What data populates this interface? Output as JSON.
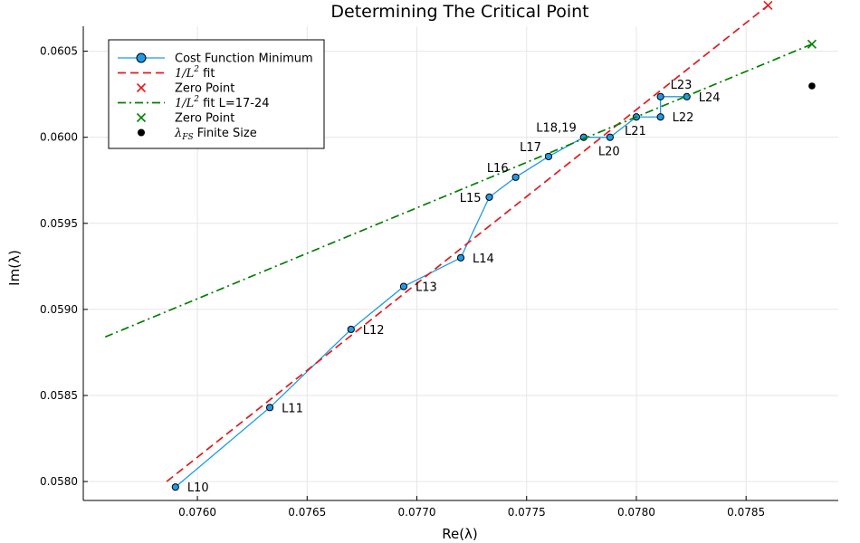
{
  "chart_data": {
    "type": "scatter",
    "title": "Determining The Critical Point",
    "xlabel": "Re(λ)",
    "ylabel": "Im(λ)",
    "xlim": [
      0.07548,
      0.07892
    ],
    "ylim": [
      0.05789,
      0.060645
    ],
    "x_ticks": [
      0.076,
      0.0765,
      0.077,
      0.0775,
      0.078,
      0.0785
    ],
    "x_tick_labels": [
      "0.0760",
      "0.0765",
      "0.0770",
      "0.0775",
      "0.0780",
      "0.0785"
    ],
    "y_ticks": [
      0.058,
      0.0585,
      0.059,
      0.0595,
      0.06,
      0.0605
    ],
    "y_tick_labels": [
      "0.0580",
      "0.0585",
      "0.0590",
      "0.0595",
      "0.0600",
      "0.0605"
    ],
    "grid": true,
    "legend_position": "top-left",
    "colors": {
      "cost_series": "#1f9be6",
      "fit_all": "#e41a1c",
      "fit_sub": "#008000",
      "finite_size": "#000000"
    },
    "series": [
      {
        "name": "Cost Function Minimum",
        "kind": "line-markers",
        "points": [
          {
            "x": 0.0759,
            "y": 0.057968,
            "label": "L10",
            "anchor": "right"
          },
          {
            "x": 0.07633,
            "y": 0.05843,
            "label": "L11",
            "anchor": "right"
          },
          {
            "x": 0.0767,
            "y": 0.058884,
            "label": "L12",
            "anchor": "right"
          },
          {
            "x": 0.07694,
            "y": 0.059133,
            "label": "L13",
            "anchor": "right"
          },
          {
            "x": 0.0772,
            "y": 0.0593,
            "label": "L14",
            "anchor": "right"
          },
          {
            "x": 0.07733,
            "y": 0.059652,
            "label": "L15",
            "anchor": "left"
          },
          {
            "x": 0.07745,
            "y": 0.059768,
            "label": "L16",
            "anchor": "above-left"
          },
          {
            "x": 0.0776,
            "y": 0.059888,
            "label": "L17",
            "anchor": "above-left"
          },
          {
            "x": 0.07776,
            "y": 0.06,
            "label": "L18,19",
            "anchor": "above-left"
          },
          {
            "x": 0.07788,
            "y": 0.06,
            "label": "L20",
            "anchor": "below-right"
          },
          {
            "x": 0.078,
            "y": 0.060118,
            "label": "L21",
            "anchor": "below-right"
          },
          {
            "x": 0.07811,
            "y": 0.060118,
            "label": "L22",
            "anchor": "right"
          },
          {
            "x": 0.07811,
            "y": 0.060236,
            "label": "L23",
            "anchor": "above-right"
          },
          {
            "x": 0.07823,
            "y": 0.060236,
            "label": "L24",
            "anchor": "right"
          }
        ]
      },
      {
        "name": "1/L² fit",
        "kind": "dashed-line",
        "points": [
          {
            "x": 0.07586,
            "y": 0.058
          },
          {
            "x": 0.0786,
            "y": 0.060766
          }
        ]
      },
      {
        "name": "Zero Point",
        "kind": "x-marker",
        "points": [
          {
            "x": 0.0786,
            "y": 0.060766
          }
        ]
      },
      {
        "name": "1/L² fit L=17-24",
        "kind": "dashdot-line",
        "points": [
          {
            "x": 0.07558,
            "y": 0.05884
          },
          {
            "x": 0.0788,
            "y": 0.060541
          }
        ]
      },
      {
        "name": "Zero Point",
        "kind": "x-marker",
        "points": [
          {
            "x": 0.0788,
            "y": 0.060541
          }
        ]
      },
      {
        "name": "λ_FS Finite Size",
        "kind": "dot",
        "points": [
          {
            "x": 0.0788,
            "y": 0.060298
          }
        ]
      }
    ],
    "legend": [
      {
        "series_index": 0,
        "symbol": "line-marker",
        "label": "Cost Function Minimum",
        "text_parts": [
          "Cost Function Minimum"
        ]
      },
      {
        "series_index": 1,
        "symbol": "dashed",
        "label": "1/L² fit",
        "text_parts": [
          "1/L",
          "2",
          " fit"
        ]
      },
      {
        "series_index": 2,
        "symbol": "x",
        "label": "Zero Point",
        "text_parts": [
          "Zero Point"
        ]
      },
      {
        "series_index": 3,
        "symbol": "dashdot",
        "label": "1/L² fit L=17-24",
        "text_parts": [
          "1/L",
          "2",
          " fit L=17-24"
        ]
      },
      {
        "series_index": 4,
        "symbol": "x",
        "label": "Zero Point",
        "text_parts": [
          "Zero Point"
        ]
      },
      {
        "series_index": 5,
        "symbol": "dot",
        "label": "λ_FS Finite Size",
        "text_parts": [
          "λ",
          "FS",
          " Finite Size"
        ]
      }
    ]
  }
}
